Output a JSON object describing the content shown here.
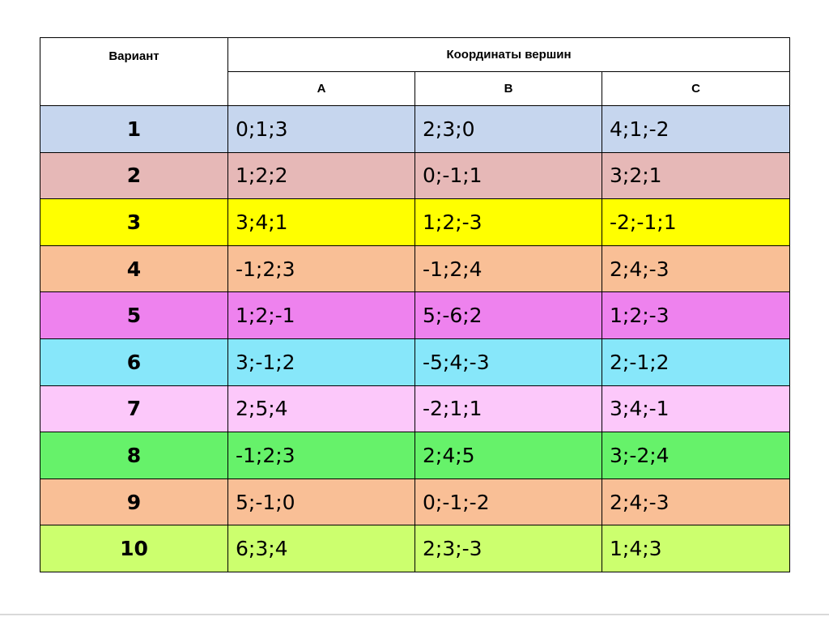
{
  "table": {
    "header": {
      "variant": "Вариант",
      "coords": "Координаты вершин",
      "vertices": [
        "A",
        "B",
        "C"
      ]
    },
    "rows": [
      {
        "n": "1",
        "a": "0;1;3",
        "b": "2;3;0",
        "c": "4;1;-2",
        "color": "#c6d6ee"
      },
      {
        "n": "2",
        "a": "1;2;2",
        "b": "0;-1;1",
        "c": "3;2;1",
        "color": "#e6b8b7"
      },
      {
        "n": "3",
        "a": "3;4;1",
        "b": "1;2;-3",
        "c": "-2;-1;1",
        "color": "#ffff00"
      },
      {
        "n": "4",
        "a": "-1;2;3",
        "b": "-1;2;4",
        "c": "2;4;-3",
        "color": "#f9bf96"
      },
      {
        "n": "5",
        "a": "1;2;-1",
        "b": "5;-6;2",
        "c": "1;2;-3",
        "color": "#ee82ee"
      },
      {
        "n": "6",
        "a": "3;-1;2",
        "b": "-5;4;-3",
        "c": "2;-1;2",
        "color": "#87e7fa"
      },
      {
        "n": "7",
        "a": "2;5;4",
        "b": "-2;1;1",
        "c": "3;4;-1",
        "color": "#fcc8fa"
      },
      {
        "n": "8",
        "a": "-1;2;3",
        "b": "2;4;5",
        "c": "3;-2;4",
        "color": "#66f26a"
      },
      {
        "n": "9",
        "a": "5;-1;0",
        "b": "0;-1;-2",
        "c": "2;4;-3",
        "color": "#f9bf96"
      },
      {
        "n": "10",
        "a": "6;3;4",
        "b": "2;3;-3",
        "c": "1;4;3",
        "color": "#ccff6e"
      }
    ]
  }
}
